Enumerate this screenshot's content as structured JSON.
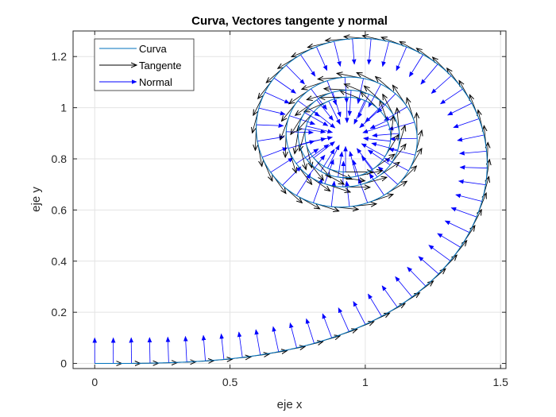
{
  "chart_data": {
    "type": "line",
    "title": "Curva, Vectores tangente y normal",
    "xlabel": "eje x",
    "ylabel": "eje y",
    "xlim": [
      -0.08,
      1.52
    ],
    "ylim": [
      -0.02,
      1.3
    ],
    "xticks": [
      0,
      0.5,
      1,
      1.5
    ],
    "xtick_labels": [
      "0",
      "0.5",
      "1",
      "1.5"
    ],
    "yticks": [
      0,
      0.2,
      0.4,
      0.6,
      0.8,
      1,
      1.2
    ],
    "ytick_labels": [
      "0",
      "0.2",
      "0.4",
      "0.6",
      "0.8",
      "1",
      "1.2"
    ],
    "grid": true,
    "legend_position": "top-left",
    "curve": {
      "description": "Euler (Cornu) spiral x = ∫cos(πt²/2), y = ∫sin(πt²/2), converging to (0.5 scaled)",
      "t_range": [
        0,
        4.0
      ],
      "spiral_center": [
        0.93,
        0.89
      ],
      "scale": 1.0
    },
    "series": [
      {
        "name": "Curva",
        "color": "#0072BD",
        "kind": "line"
      },
      {
        "name": "Tangente",
        "color": "#000000",
        "kind": "arrow",
        "arrow_length": 0.1
      },
      {
        "name": "Normal",
        "color": "#0000FF",
        "kind": "arrow",
        "arrow_length": 0.1
      }
    ],
    "arrow_count": 110
  }
}
